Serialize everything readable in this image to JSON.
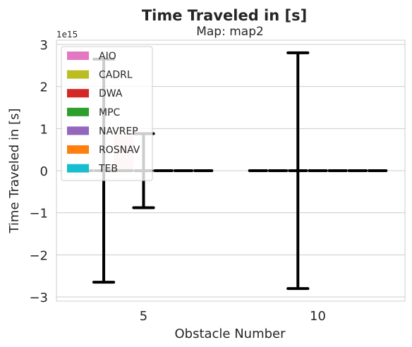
{
  "chart_data": {
    "type": "bar",
    "title": "Time Traveled in [s]",
    "subtitle": "Map: map2",
    "xlabel": "Obstacle Number",
    "ylabel": "Time Traveled in [s]",
    "scale_label": "1e15",
    "ylim": [
      -3.1,
      3.1
    ],
    "y_ticks": [
      -3,
      -2,
      -1,
      0,
      1,
      2,
      3
    ],
    "y_tick_labels": [
      "−3",
      "−2",
      "−1",
      "0",
      "1",
      "2",
      "3"
    ],
    "grid": true,
    "legend_placement": "upper-left",
    "categories": [
      "5",
      "10"
    ],
    "series": [
      {
        "name": "AIO",
        "color": "#e377c2",
        "values": [
          0,
          0
        ],
        "errors": [
          0,
          0
        ]
      },
      {
        "name": "CADRL",
        "color": "#bcbd22",
        "values": [
          0,
          0
        ],
        "errors": [
          2.65,
          0
        ]
      },
      {
        "name": "DWA",
        "color": "#d62728",
        "values": [
          0.88,
          0
        ],
        "errors": [
          0,
          2.8
        ]
      },
      {
        "name": "MPC",
        "color": "#2ca02c",
        "values": [
          0,
          0
        ],
        "errors": [
          0.88,
          0
        ]
      },
      {
        "name": "NAVREP",
        "color": "#9467bd",
        "values": [
          0,
          0
        ],
        "errors": [
          0,
          0
        ]
      },
      {
        "name": "ROSNAV",
        "color": "#ff7f0e",
        "values": [
          0,
          0
        ],
        "errors": [
          0,
          0
        ]
      },
      {
        "name": "TEB",
        "color": "#17becf",
        "values": [
          0,
          0
        ],
        "errors": [
          0,
          0
        ]
      }
    ]
  }
}
